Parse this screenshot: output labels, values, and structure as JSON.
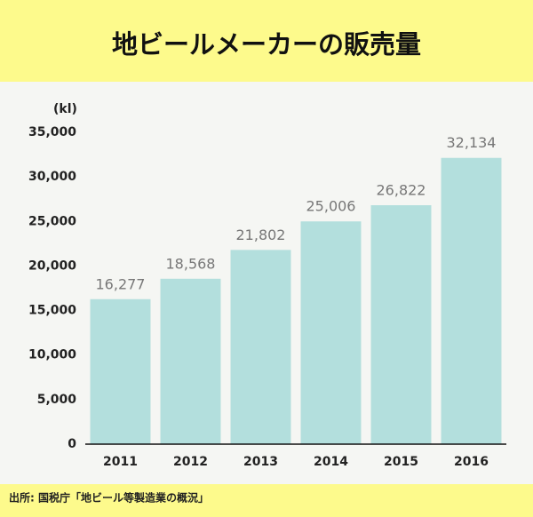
{
  "chart_data": {
    "type": "bar",
    "title": "地ビールメーカーの販売量",
    "y_label": "(kl)",
    "source": "出所: 国税庁「地ビール等製造業の概況」",
    "categories": [
      "2011",
      "2012",
      "2013",
      "2014",
      "2015",
      "2016"
    ],
    "values": [
      16277,
      18568,
      21802,
      25006,
      26822,
      32134
    ],
    "value_labels": [
      "16,277",
      "18,568",
      "21,802",
      "25,006",
      "26,822",
      "32,134"
    ],
    "color": "#b3dfdd",
    "ylim": [
      0,
      35000
    ],
    "yticks": [
      0,
      {
        "value": 5000,
        "label": "5,000"
      },
      {
        "value": 10000,
        "label": "10,000"
      },
      {
        "value": 15000,
        "label": "15,000"
      },
      {
        "value": 20000,
        "label": "20,000"
      },
      {
        "value": 25000,
        "label": "25,000"
      },
      {
        "value": 30000,
        "label": "30,000"
      },
      {
        "value": 35000,
        "label": "35,000"
      }
    ],
    "grid": false
  }
}
